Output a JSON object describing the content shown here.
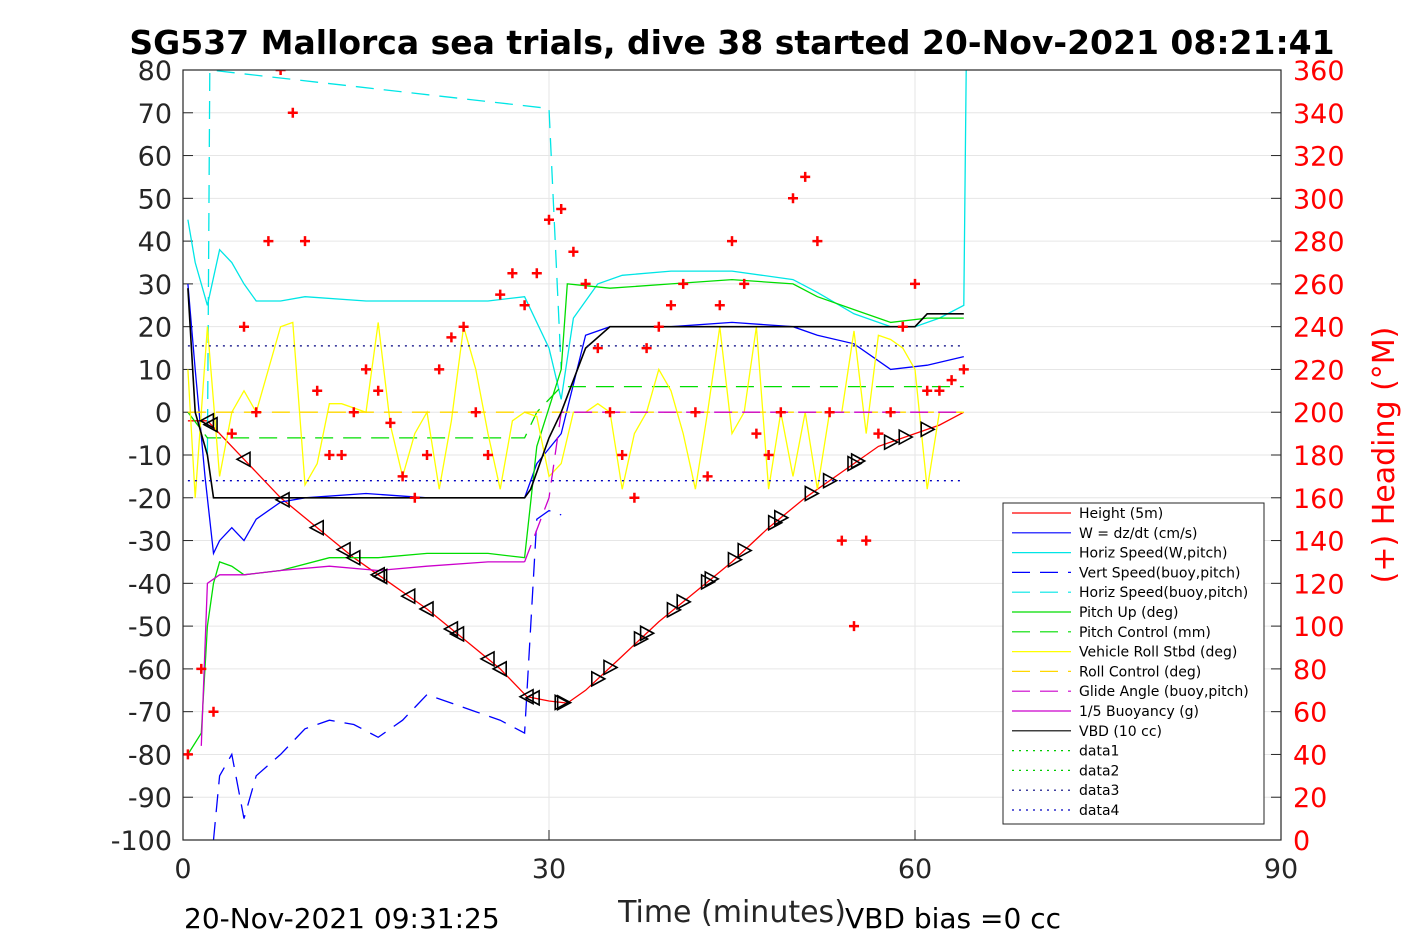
{
  "chart_data": {
    "type": "line",
    "title": "SG537 Mallorca sea trials, dive 38 started 20-Nov-2021 08:21:41",
    "xlabel": "Time (minutes)",
    "ylabel": "",
    "ylabel_right": "(+) Heading (°M)",
    "xlim": [
      0,
      90
    ],
    "ylim": [
      -100,
      80
    ],
    "ylim_right": [
      0,
      360
    ],
    "x_ticks": [
      "0",
      "30",
      "60",
      "90"
    ],
    "y_ticks": [
      "80",
      "70",
      "60",
      "50",
      "40",
      "30",
      "20",
      "10",
      "0",
      "-10",
      "-20",
      "-30",
      "-40",
      "-50",
      "-60",
      "-70",
      "-80",
      "-90",
      "-100"
    ],
    "y_ticks_right": [
      "360",
      "340",
      "320",
      "300",
      "280",
      "260",
      "240",
      "220",
      "200",
      "180",
      "160",
      "140",
      "120",
      "100",
      "80",
      "60",
      "40",
      "20",
      "0"
    ],
    "grid": true,
    "legend_position": "bottom-right",
    "footer_left": "20-Nov-2021 09:31:25",
    "footer_right": "VBD bias =0 cc",
    "colors": {
      "height": "#ff0000",
      "w": "#0000ff",
      "horiz_w": "#00e6e6",
      "vert_buoy": "#0000ff",
      "horiz_buoy": "#00e6e6",
      "pitch": "#00dd00",
      "pitch_ctrl": "#00dd00",
      "roll": "#ffff00",
      "roll_ctrl": "#ffd700",
      "glide": "#cc00cc",
      "buoyancy": "#cc00cc",
      "vbd": "#000000",
      "data1": "#00cc00",
      "data2": "#00cc00",
      "data3": "#000080",
      "data4": "#0000c0",
      "heading": "#ff0000"
    },
    "series": [
      {
        "name": "Height (5m)",
        "key": "height",
        "style": "solid",
        "x": [
          0.4,
          2,
          5,
          8,
          11,
          14,
          17,
          20,
          23,
          26,
          28.2,
          30,
          31.5,
          33,
          36,
          39,
          42,
          45,
          48,
          51,
          54,
          57,
          60,
          62,
          64
        ],
        "y": [
          -2,
          -2,
          -11,
          -20,
          -27,
          -34,
          -40,
          -46,
          -53,
          -60,
          -66.5,
          -67.5,
          -68,
          -65,
          -57,
          -49,
          -42,
          -35,
          -27,
          -20,
          -14,
          -8,
          -5,
          -3,
          0
        ]
      },
      {
        "name": "W = dz/dt (cm/s)",
        "key": "w",
        "style": "solid",
        "x": [
          0.4,
          1,
          1.8,
          2.5,
          3,
          4,
          5,
          6,
          8,
          10,
          15,
          20,
          25,
          28,
          29,
          31,
          33,
          35,
          40,
          45,
          50,
          52,
          55,
          58,
          61,
          64
        ],
        "y": [
          30,
          10,
          -15,
          -33,
          -30,
          -27,
          -30,
          -25,
          -21,
          -20,
          -19,
          -20,
          -20,
          -20,
          -12,
          -5,
          18,
          20,
          20,
          21,
          20,
          18,
          16,
          10,
          11,
          13
        ]
      },
      {
        "name": "Horiz Speed(W,pitch)",
        "key": "horiz_w",
        "style": "solid",
        "x": [
          0.4,
          1,
          2,
          3,
          4,
          5,
          6,
          8,
          10,
          15,
          20,
          25,
          28,
          30,
          31,
          32,
          34,
          36,
          40,
          45,
          50,
          52,
          55,
          58,
          60,
          62,
          64,
          64.2
        ],
        "y": [
          45,
          35,
          25,
          38,
          35,
          30,
          26,
          26,
          27,
          26,
          26,
          26,
          27,
          15,
          3,
          22,
          30,
          32,
          33,
          33,
          31,
          28,
          23,
          20,
          20,
          22,
          25,
          80
        ]
      },
      {
        "name": "Vert Speed(buoy,pitch)",
        "key": "vert_buoy",
        "style": "dash",
        "x": [
          2.5,
          3,
          4,
          5,
          6,
          8,
          10,
          12,
          14,
          16,
          18,
          20,
          22,
          24,
          26,
          28,
          28.5,
          29,
          30,
          31
        ],
        "y": [
          -100,
          -85,
          -80,
          -95,
          -85,
          -80,
          -74,
          -72,
          -73,
          -76,
          -72,
          -66,
          -68,
          -70,
          -72,
          -75,
          -50,
          -25,
          -23,
          -24
        ]
      },
      {
        "name": "Horiz Speed(buoy,pitch)",
        "key": "horiz_buoy",
        "style": "dash",
        "x": [
          2,
          2.2,
          30,
          31
        ],
        "y": [
          -10,
          80,
          71,
          10
        ]
      },
      {
        "name": "Pitch Up (deg)",
        "key": "pitch",
        "style": "solid",
        "x": [
          0.4,
          1.5,
          2,
          2.5,
          3,
          4,
          5,
          8,
          12,
          16,
          20,
          25,
          28,
          29,
          31,
          31.5,
          35,
          40,
          45,
          50,
          52,
          55,
          58,
          61,
          64
        ],
        "y": [
          -80,
          -75,
          -50,
          -40,
          -35,
          -36,
          -38,
          -37,
          -34,
          -34,
          -33,
          -33,
          -34,
          -8,
          10,
          30,
          29,
          30,
          31,
          30,
          27,
          24,
          21,
          22,
          22
        ]
      },
      {
        "name": "Pitch Control (mm)",
        "key": "pitch_ctrl",
        "style": "dash",
        "x": [
          0.4,
          2,
          10,
          20,
          28,
          29,
          31,
          40,
          50,
          60,
          64
        ],
        "y": [
          0,
          -6,
          -6,
          -6,
          -6,
          0,
          6,
          6,
          6,
          6,
          6
        ]
      },
      {
        "name": "Vehicle Roll Stbd (deg)",
        "key": "roll",
        "style": "solid",
        "x": [
          0.4,
          1,
          2,
          3,
          4,
          5,
          6,
          8,
          9,
          10,
          11,
          12,
          13,
          15,
          16,
          17,
          18,
          19,
          20,
          21,
          22,
          23,
          24,
          25,
          26,
          27,
          28,
          29,
          30,
          31,
          32,
          33,
          34,
          35,
          36,
          37,
          38,
          39,
          40,
          41,
          42,
          43,
          44,
          45,
          46,
          47,
          48,
          49,
          50,
          51,
          52,
          53,
          54,
          55,
          56,
          57,
          58,
          59,
          60,
          61,
          62,
          63,
          64
        ],
        "y": [
          10,
          -20,
          20,
          -15,
          0,
          5,
          0,
          20,
          21,
          -17,
          -12,
          2,
          2,
          0,
          21,
          -3,
          -15,
          -5,
          0,
          -18,
          -2,
          20,
          10,
          -5,
          -18,
          -2,
          0,
          -1,
          -15,
          -12,
          0,
          0,
          2,
          0,
          -18,
          -5,
          0,
          10,
          5,
          -5,
          -18,
          0,
          20,
          -5,
          0,
          20,
          -18,
          0,
          -15,
          0,
          -18,
          0,
          0,
          19,
          -5,
          18,
          17,
          15,
          10,
          -18,
          0,
          0,
          0
        ]
      },
      {
        "name": "Roll Control (deg)",
        "key": "roll_ctrl",
        "style": "dash",
        "x": [
          0.4,
          64
        ],
        "y": [
          0,
          0
        ]
      },
      {
        "name": "Glide Angle (buoy,pitch)",
        "key": "glide",
        "style": "dash",
        "x": [
          28,
          30,
          31,
          64
        ],
        "y": [
          -35,
          -20,
          0,
          0
        ]
      },
      {
        "name": "1/5 Buoyancy (g)",
        "key": "buoyancy",
        "style": "solid",
        "x": [
          1.5,
          2,
          3,
          5,
          8,
          12,
          16,
          20,
          25,
          28
        ],
        "y": [
          -78,
          -40,
          -38,
          -38,
          -37,
          -36,
          -37,
          -36,
          -35,
          -35
        ]
      },
      {
        "name": "VBD (10 cc)",
        "key": "vbd",
        "style": "solid",
        "x": [
          0.4,
          1,
          2,
          2.5,
          10,
          20,
          28,
          28.5,
          30,
          31,
          33,
          35,
          40,
          45,
          50,
          55,
          60,
          61,
          64
        ],
        "y": [
          29,
          0,
          -10,
          -20,
          -20,
          -20,
          -20,
          -18,
          -6,
          0,
          15,
          20,
          20,
          20,
          20,
          20,
          20,
          23,
          23
        ]
      },
      {
        "name": "data1",
        "key": "data1",
        "style": "dot",
        "x": [],
        "y": []
      },
      {
        "name": "data2",
        "key": "data2",
        "style": "dot",
        "x": [],
        "y": []
      },
      {
        "name": "data3",
        "key": "data3",
        "style": "dot",
        "x": [
          0.4,
          64
        ],
        "y": [
          15.5,
          15.5
        ]
      },
      {
        "name": "data4",
        "key": "data4",
        "style": "dot",
        "x": [
          0.4,
          64
        ],
        "y": [
          -16,
          -16
        ]
      }
    ],
    "heading": {
      "axis": "right",
      "x": [
        0.4,
        1.5,
        2.5,
        4,
        5,
        6,
        7,
        8,
        9,
        10,
        11,
        12,
        13,
        14,
        15,
        16,
        17,
        18,
        19,
        20,
        21,
        22,
        23,
        24,
        25,
        26,
        27,
        28,
        29,
        30,
        31,
        32,
        33,
        34,
        35,
        36,
        37,
        38,
        39,
        40,
        41,
        42,
        43,
        44,
        45,
        46,
        47,
        48,
        49,
        50,
        51,
        52,
        53,
        54,
        55,
        56,
        57,
        58,
        59,
        60,
        61,
        62,
        63,
        64
      ],
      "y": [
        40,
        80,
        60,
        190,
        240,
        200,
        280,
        360,
        340,
        280,
        210,
        180,
        180,
        200,
        220,
        210,
        195,
        170,
        160,
        180,
        220,
        235,
        240,
        200,
        180,
        255,
        265,
        250,
        265,
        290,
        295,
        275,
        260,
        230,
        200,
        180,
        160,
        230,
        240,
        250,
        260,
        200,
        170,
        250,
        280,
        260,
        190,
        180,
        200,
        300,
        310,
        280,
        200,
        140,
        100,
        140,
        190,
        200,
        240,
        260,
        210,
        210,
        215,
        220
      ]
    },
    "markers": {
      "series": "height",
      "x": [
        2,
        2.3,
        5,
        8.2,
        11,
        13.2,
        14,
        16,
        16.2,
        18.5,
        20,
        22,
        22.5,
        25,
        26,
        28.2,
        28.7,
        31,
        31.2,
        34,
        35,
        37.5,
        38,
        40.2,
        41,
        43,
        43.3,
        45.2,
        46,
        48.5,
        49,
        51.5,
        53,
        55,
        55.3,
        58,
        59.2,
        61
      ]
    }
  }
}
